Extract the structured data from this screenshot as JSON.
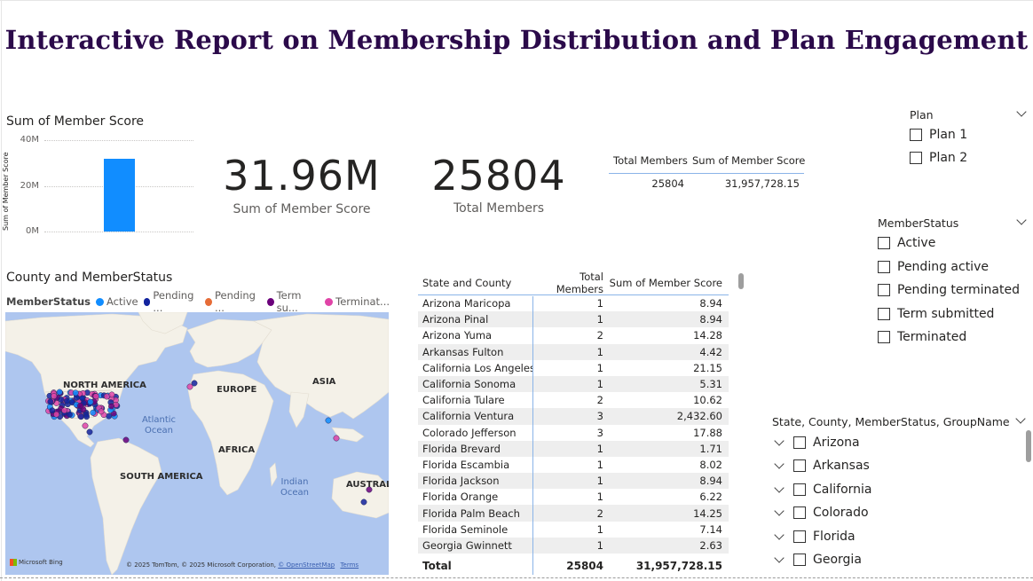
{
  "report": {
    "title": "Interactive Report on Membership Distribution and Plan Engagement"
  },
  "bar_chart": {
    "title": "Sum of Member Score",
    "ylabel": "Sum of Member Score",
    "ticks": [
      "40M",
      "20M",
      "0M"
    ],
    "bar_color": "#118dff"
  },
  "chart_data": {
    "type": "bar",
    "categories": [
      ""
    ],
    "values": [
      31957728.15
    ],
    "title": "Sum of Member Score",
    "xlabel": "",
    "ylabel": "Sum of Member Score",
    "ylim": [
      0,
      40000000
    ],
    "grid": true
  },
  "cards": [
    {
      "value": "31.96M",
      "label": "Sum of Member Score"
    },
    {
      "value": "25804",
      "label": "Total Members"
    }
  ],
  "mini_table": {
    "headers": [
      "Total Members",
      "Sum of Member Score"
    ],
    "row": [
      "25804",
      "31,957,728.15"
    ]
  },
  "plan_slicer": {
    "title": "Plan",
    "items": [
      "Plan 1",
      "Plan 2"
    ]
  },
  "status_slicer": {
    "title": "MemberStatus",
    "items": [
      "Active",
      "Pending active",
      "Pending terminated",
      "Term submitted",
      "Terminated"
    ]
  },
  "hier_slicer": {
    "title": "State, County, MemberStatus, GroupName",
    "items": [
      "Arizona",
      "Arkansas",
      "California",
      "Colorado",
      "Florida",
      "Georgia"
    ]
  },
  "map": {
    "title": "County and MemberStatus",
    "legend_title": "MemberStatus",
    "legend": [
      {
        "label": "Active",
        "color": "#118dff"
      },
      {
        "label": "Pending ...",
        "color": "#12239e"
      },
      {
        "label": "Pending ...",
        "color": "#e66c37"
      },
      {
        "label": "Term su...",
        "color": "#6b007b"
      },
      {
        "label": "Terminat...",
        "color": "#e044a7"
      }
    ],
    "continents": [
      "NORTH AMERICA",
      "EUROPE",
      "ASIA",
      "AFRICA",
      "SOUTH AMERICA",
      "AUSTRAL"
    ],
    "oceans": [
      "Atlantic\nOcean",
      "Indian\nOcean"
    ],
    "brand": "Microsoft Bing",
    "copyright": "© 2025 TomTom, © 2025 Microsoft Corporation,",
    "osm": "© OpenStreetMap",
    "terms": "Terms"
  },
  "table": {
    "headers": [
      "State and County",
      "Total Members",
      "Sum of Member Score"
    ],
    "rows": [
      [
        "Arizona Maricopa",
        "1",
        "8.94"
      ],
      [
        "Arizona Pinal",
        "1",
        "8.94"
      ],
      [
        "Arizona Yuma",
        "2",
        "14.28"
      ],
      [
        "Arkansas Fulton",
        "1",
        "4.42"
      ],
      [
        "California Los Angeles",
        "1",
        "21.15"
      ],
      [
        "California Sonoma",
        "1",
        "5.31"
      ],
      [
        "California Tulare",
        "2",
        "10.62"
      ],
      [
        "California Ventura",
        "3",
        "2,432.60"
      ],
      [
        "Colorado Jefferson",
        "3",
        "17.88"
      ],
      [
        "Florida Brevard",
        "1",
        "1.71"
      ],
      [
        "Florida Escambia",
        "1",
        "8.02"
      ],
      [
        "Florida Jackson",
        "1",
        "8.94"
      ],
      [
        "Florida Orange",
        "1",
        "6.22"
      ],
      [
        "Florida Palm Beach",
        "2",
        "14.25"
      ],
      [
        "Florida Seminole",
        "1",
        "7.14"
      ],
      [
        "Georgia Gwinnett",
        "1",
        "2.63"
      ]
    ],
    "total": [
      "Total",
      "25804",
      "31,957,728.15"
    ]
  }
}
